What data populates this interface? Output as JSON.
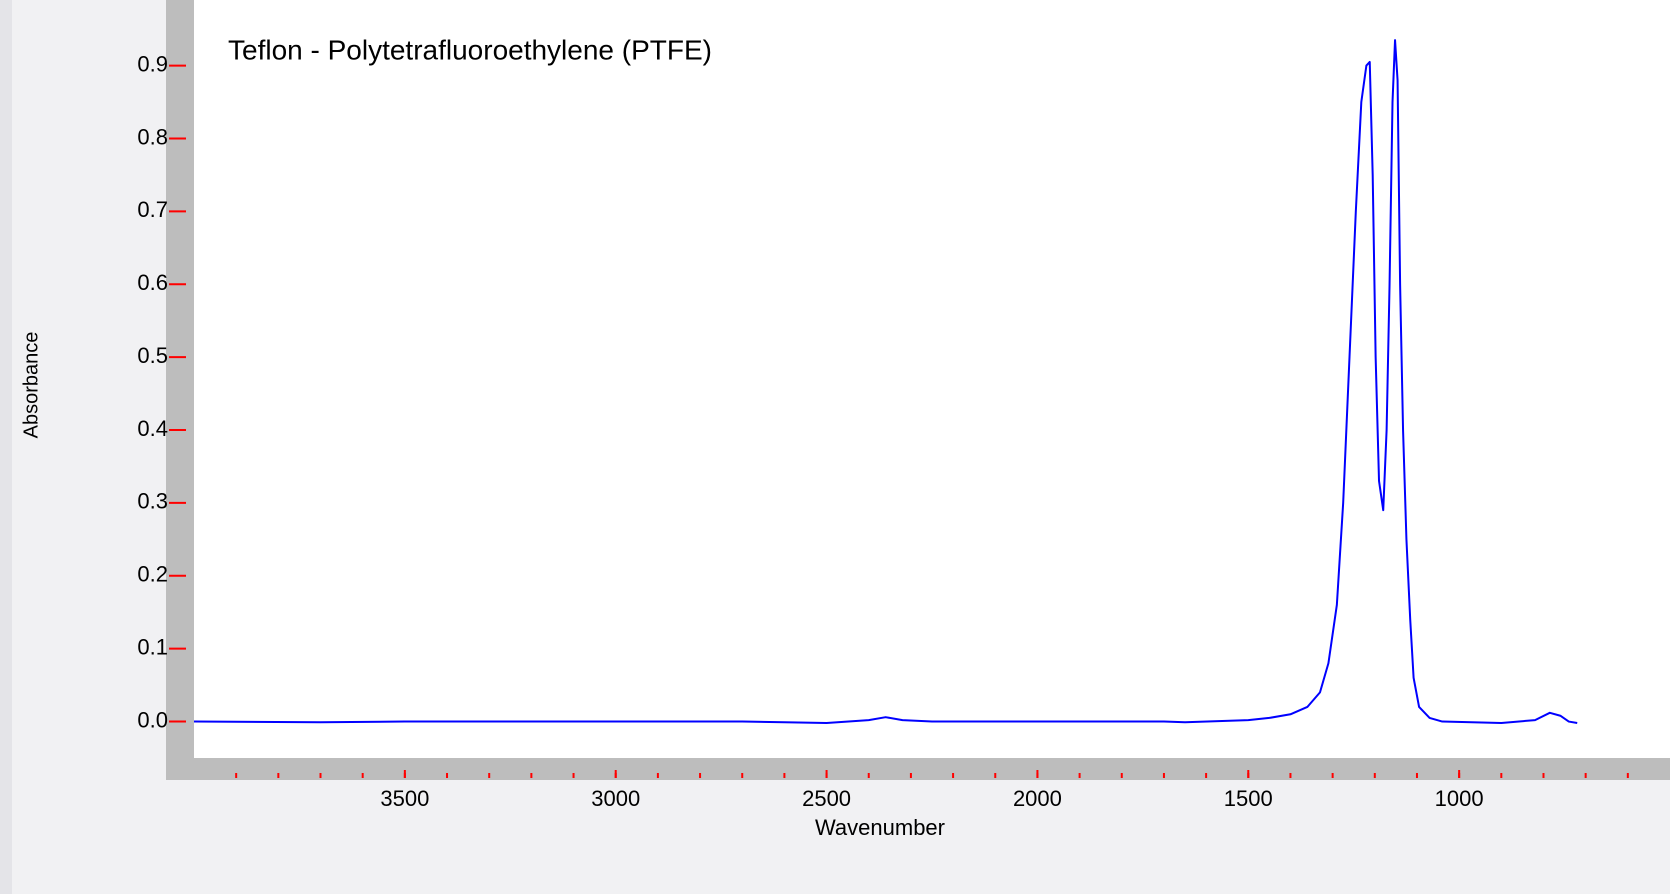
{
  "chart_data": {
    "type": "line",
    "title": "Teflon - Polytetrafluoroethylene (PTFE)",
    "xlabel": "Wavenumber",
    "ylabel": "Absorbance",
    "x": [
      4000,
      3700,
      3500,
      3200,
      3000,
      2700,
      2600,
      2500,
      2400,
      2360,
      2320,
      2250,
      2000,
      1700,
      1650,
      1500,
      1450,
      1400,
      1360,
      1330,
      1310,
      1290,
      1275,
      1260,
      1245,
      1232,
      1220,
      1212,
      1205,
      1198,
      1190,
      1180,
      1172,
      1165,
      1158,
      1152,
      1146,
      1140,
      1133,
      1125,
      1116,
      1108,
      1095,
      1070,
      1040,
      900,
      820,
      785,
      760,
      740,
      720
    ],
    "values": [
      0,
      -0.001,
      0,
      0,
      0,
      0,
      -0.001,
      -0.002,
      0.002,
      0.006,
      0.002,
      0,
      0,
      0,
      -0.001,
      0.002,
      0.005,
      0.01,
      0.02,
      0.04,
      0.08,
      0.16,
      0.3,
      0.5,
      0.7,
      0.85,
      0.9,
      0.905,
      0.75,
      0.5,
      0.33,
      0.29,
      0.4,
      0.6,
      0.85,
      0.935,
      0.88,
      0.6,
      0.4,
      0.25,
      0.14,
      0.06,
      0.02,
      0.005,
      0,
      -0.002,
      0.002,
      0.012,
      0.008,
      0,
      -0.002
    ],
    "color": "#0000ff",
    "tick_color": "#ff0000",
    "title_color": "#5b1f9e",
    "xlim": [
      4000,
      500
    ],
    "xticks": [
      3500,
      3000,
      2500,
      2000,
      1500,
      1000
    ],
    "xminorticks": [
      3900,
      3800,
      3700,
      3600,
      3500,
      3400,
      3300,
      3200,
      3100,
      3000,
      2900,
      2800,
      2700,
      2600,
      2500,
      2400,
      2300,
      2200,
      2100,
      2000,
      1900,
      1800,
      1700,
      1600,
      1500,
      1400,
      1300,
      1200,
      1100,
      1000,
      900,
      800,
      700,
      600
    ],
    "ylim": [
      -0.05,
      0.99
    ],
    "yticks": [
      {
        "value": 0,
        "label": "0.0"
      },
      0.1,
      0.2,
      0.3,
      0.4,
      0.5,
      0.6,
      0.7,
      0.8,
      0.9
    ]
  }
}
